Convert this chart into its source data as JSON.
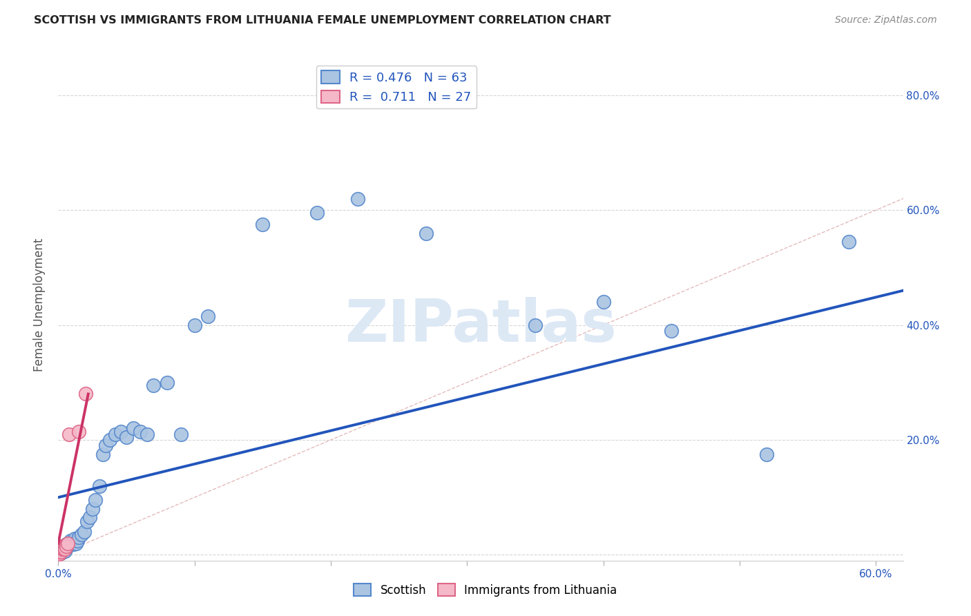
{
  "title": "SCOTTISH VS IMMIGRANTS FROM LITHUANIA FEMALE UNEMPLOYMENT CORRELATION CHART",
  "source": "Source: ZipAtlas.com",
  "ylabel": "Female Unemployment",
  "xlim": [
    0.0,
    0.62
  ],
  "ylim": [
    -0.01,
    0.88
  ],
  "scottish_R": 0.476,
  "scottish_N": 63,
  "lithuania_R": 0.711,
  "lithuania_N": 27,
  "scottish_color": "#aac4e2",
  "scottish_edge_color": "#5588cc",
  "scottish_line_color": "#2255bb",
  "lithuania_color": "#f5b8c8",
  "lithuania_edge_color": "#dd6688",
  "lithuania_line_color": "#cc3366",
  "scatter_size": 200,
  "scatter_linewidth": 1.2,
  "background_color": "#ffffff",
  "grid_color": "#cccccc",
  "watermark": "ZIPatlas",
  "scottish_x": [
    0.001,
    0.001,
    0.001,
    0.001,
    0.001,
    0.001,
    0.002,
    0.002,
    0.002,
    0.002,
    0.002,
    0.003,
    0.003,
    0.003,
    0.003,
    0.004,
    0.004,
    0.004,
    0.005,
    0.005,
    0.005,
    0.006,
    0.006,
    0.007,
    0.007,
    0.008,
    0.009,
    0.01,
    0.011,
    0.012,
    0.013,
    0.014,
    0.015,
    0.017,
    0.019,
    0.021,
    0.023,
    0.025,
    0.027,
    0.03,
    0.033,
    0.035,
    0.038,
    0.042,
    0.046,
    0.05,
    0.055,
    0.06,
    0.065,
    0.07,
    0.08,
    0.09,
    0.1,
    0.11,
    0.15,
    0.19,
    0.22,
    0.27,
    0.35,
    0.4,
    0.45,
    0.52,
    0.58
  ],
  "scottish_y": [
    0.005,
    0.008,
    0.006,
    0.003,
    0.01,
    0.004,
    0.007,
    0.012,
    0.005,
    0.009,
    0.003,
    0.008,
    0.012,
    0.006,
    0.015,
    0.01,
    0.007,
    0.013,
    0.01,
    0.015,
    0.007,
    0.012,
    0.018,
    0.015,
    0.02,
    0.018,
    0.025,
    0.022,
    0.018,
    0.028,
    0.02,
    0.025,
    0.03,
    0.035,
    0.04,
    0.058,
    0.065,
    0.08,
    0.095,
    0.12,
    0.175,
    0.19,
    0.2,
    0.21,
    0.215,
    0.205,
    0.22,
    0.215,
    0.21,
    0.295,
    0.3,
    0.21,
    0.4,
    0.415,
    0.575,
    0.595,
    0.62,
    0.56,
    0.4,
    0.44,
    0.39,
    0.175,
    0.545
  ],
  "lithuania_x": [
    0.001,
    0.001,
    0.001,
    0.001,
    0.001,
    0.001,
    0.001,
    0.001,
    0.001,
    0.001,
    0.002,
    0.002,
    0.002,
    0.002,
    0.002,
    0.002,
    0.003,
    0.003,
    0.004,
    0.004,
    0.005,
    0.005,
    0.006,
    0.007,
    0.008,
    0.015,
    0.02
  ],
  "lithuania_y": [
    0.003,
    0.005,
    0.007,
    0.008,
    0.004,
    0.006,
    0.009,
    0.002,
    0.01,
    0.005,
    0.007,
    0.01,
    0.012,
    0.008,
    0.005,
    0.015,
    0.01,
    0.012,
    0.012,
    0.015,
    0.015,
    0.01,
    0.015,
    0.02,
    0.21,
    0.215,
    0.28
  ],
  "blue_line_x": [
    0.0,
    0.62
  ],
  "blue_line_y": [
    0.1,
    0.46
  ],
  "pink_line_x": [
    0.0,
    0.022
  ],
  "pink_line_y": [
    0.02,
    0.28
  ]
}
